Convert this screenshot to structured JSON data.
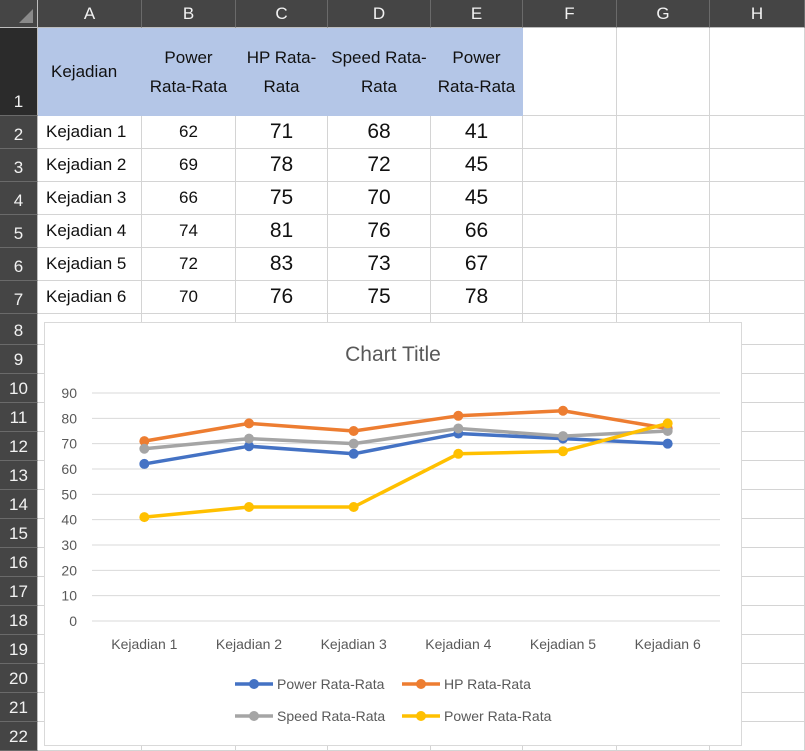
{
  "columns": [
    "A",
    "B",
    "C",
    "D",
    "E",
    "F",
    "G",
    "H"
  ],
  "rows": [
    "1",
    "2",
    "3",
    "4",
    "5",
    "6",
    "7",
    "8",
    "9",
    "10",
    "11",
    "12",
    "13",
    "14",
    "15",
    "16",
    "17",
    "18",
    "19",
    "20",
    "21",
    "22"
  ],
  "table": {
    "headers": [
      "Kejadian",
      "Power Rata-Rata",
      "HP Rata-Rata",
      "Speed Rata-Rata",
      "Power Rata-Rata"
    ],
    "rows": [
      {
        "label": "Kejadian 1",
        "b": "62",
        "c": "71",
        "d": "68",
        "e": "41"
      },
      {
        "label": "Kejadian 2",
        "b": "69",
        "c": "78",
        "d": "72",
        "e": "45"
      },
      {
        "label": "Kejadian 3",
        "b": "66",
        "c": "75",
        "d": "70",
        "e": "45"
      },
      {
        "label": "Kejadian 4",
        "b": "74",
        "c": "81",
        "d": "76",
        "e": "66"
      },
      {
        "label": "Kejadian 5",
        "b": "72",
        "c": "83",
        "d": "73",
        "e": "67"
      },
      {
        "label": "Kejadian 6",
        "b": "70",
        "c": "76",
        "d": "75",
        "e": "78"
      }
    ]
  },
  "chart_data": {
    "type": "line",
    "title": "Chart Title",
    "xlabel": "",
    "ylabel": "",
    "categories": [
      "Kejadian 1",
      "Kejadian 2",
      "Kejadian 3",
      "Kejadian 4",
      "Kejadian 5",
      "Kejadian 6"
    ],
    "ylim": [
      0,
      90
    ],
    "yticks": [
      0,
      10,
      20,
      30,
      40,
      50,
      60,
      70,
      80,
      90
    ],
    "grid": true,
    "legend": "bottom",
    "series": [
      {
        "name": "Power Rata-Rata",
        "color": "#4472c4",
        "values": [
          62,
          69,
          66,
          74,
          72,
          70
        ]
      },
      {
        "name": "HP Rata-Rata",
        "color": "#ed7d31",
        "values": [
          71,
          78,
          75,
          81,
          83,
          76
        ]
      },
      {
        "name": "Speed Rata-Rata",
        "color": "#a5a5a5",
        "values": [
          68,
          72,
          70,
          76,
          73,
          75
        ]
      },
      {
        "name": "Power Rata-Rata",
        "color": "#ffc000",
        "values": [
          41,
          45,
          45,
          66,
          67,
          78
        ]
      }
    ]
  }
}
